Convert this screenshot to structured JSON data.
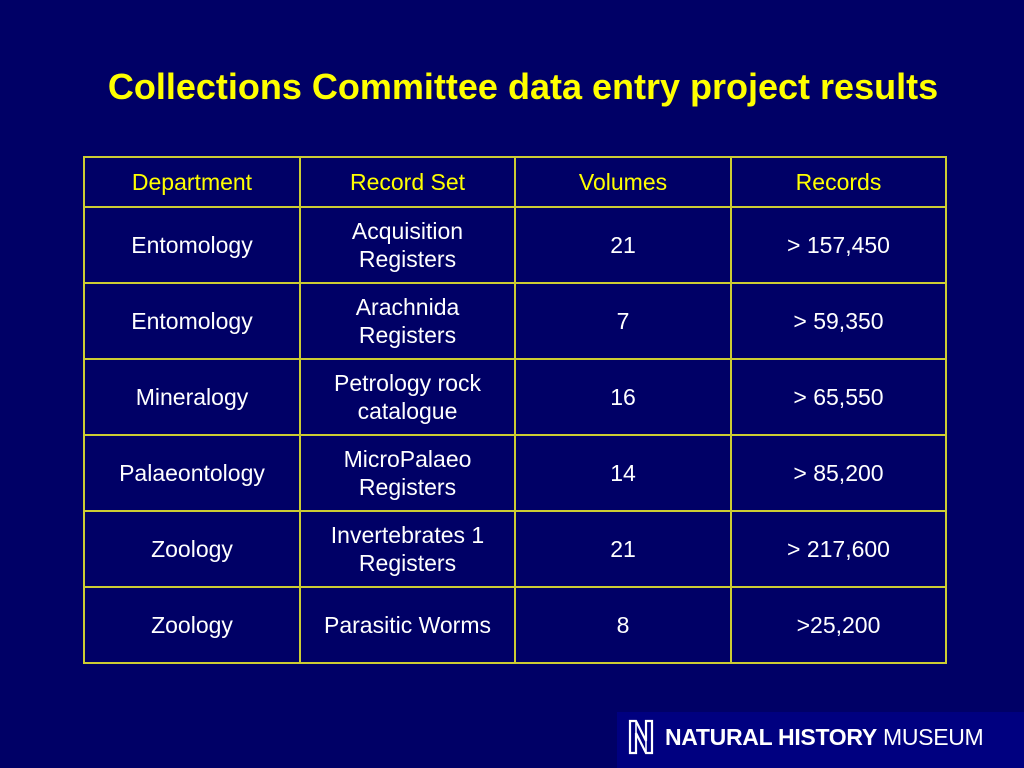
{
  "slide": {
    "title": "Collections Committee data entry project results",
    "background_color": "#000066",
    "title_color": "#ffff00",
    "border_color": "#cccc33"
  },
  "table": {
    "headers": [
      "Department",
      "Record Set",
      "Volumes",
      "Records"
    ],
    "rows": [
      {
        "department": "Entomology",
        "record_set_line1": "Acquisition",
        "record_set_line2": "Registers",
        "volumes": "21",
        "records": "> 157,450"
      },
      {
        "department": "Entomology",
        "record_set_line1": "Arachnida",
        "record_set_line2": "Registers",
        "volumes": "7",
        "records": "> 59,350"
      },
      {
        "department": "Mineralogy",
        "record_set_line1": "Petrology rock",
        "record_set_line2": "catalogue",
        "volumes": "16",
        "records": "> 65,550"
      },
      {
        "department": "Palaeontology",
        "record_set_line1": "MicroPalaeo",
        "record_set_line2": "Registers",
        "volumes": "14",
        "records": "> 85,200"
      },
      {
        "department": "Zoology",
        "record_set_line1": "Invertebrates 1",
        "record_set_line2": "Registers",
        "volumes": "21",
        "records": "> 217,600"
      },
      {
        "department": "Zoology",
        "record_set_line1": "Parasitic Worms",
        "record_set_line2": "",
        "volumes": "8",
        "records": ">25,200"
      }
    ]
  },
  "logo": {
    "icon": "nhm-n-logo-icon",
    "bold_text": "NATURAL HISTORY",
    "light_text": "MUSEUM"
  }
}
